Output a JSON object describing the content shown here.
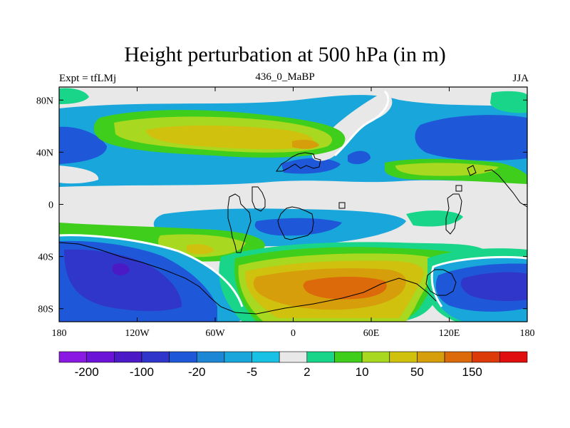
{
  "header": {
    "title": "Height perturbation at 500 hPa (in m)",
    "left": "Expt = tfLMj",
    "center": "436_0_MaBP",
    "right": "JJA"
  },
  "map": {
    "lon_range": [
      -180,
      180
    ],
    "lat_range": [
      -90,
      90
    ],
    "x_ticks": [
      "180",
      "120W",
      "60W",
      "0",
      "60E",
      "120E",
      "180"
    ],
    "y_ticks": [
      "80N",
      "40N",
      "0",
      "40S",
      "80S"
    ]
  },
  "colorbar": {
    "colors": [
      "#8a19e3",
      "#6b14d8",
      "#4b1ac6",
      "#2f36c9",
      "#1e58d8",
      "#1d87d6",
      "#18a6db",
      "#19c2e5",
      "#e8e8e8",
      "#19d58a",
      "#3fce1c",
      "#a8d81f",
      "#cfc10e",
      "#d79e0b",
      "#dc6a0a",
      "#dd3a0a",
      "#e00e0e"
    ],
    "labels": [
      "-200",
      "-100",
      "-20",
      "-5",
      "2",
      "10",
      "50",
      "150"
    ]
  },
  "colors": {
    "grey": "#e8e8e8",
    "light_blue": "#18a6db",
    "blue": "#1e58d8",
    "dark_blue": "#2f36c9",
    "green": "#3fce1c",
    "teal": "#19d58a",
    "yellow_green": "#a8d81f",
    "yellow": "#cfc10e",
    "orange": "#d79e0b",
    "dark_orange": "#dc6a0a"
  }
}
